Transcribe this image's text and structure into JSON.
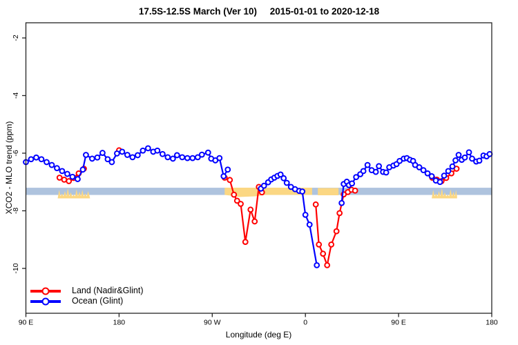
{
  "chart_data": {
    "type": "line",
    "title": "17.5S-12.5S March (Ver 10)     2015-01-01 to 2020-12-18",
    "xlabel": "Longitude (deg E)",
    "ylabel": "XCO2 - MLO trend (ppm)",
    "xlim_unwrapped_deg": [
      90,
      540
    ],
    "ylim": [
      -11.6,
      -1.7
    ],
    "grid": false,
    "x_ticks": [
      {
        "deg": 90,
        "label": "90 E"
      },
      {
        "deg": 180,
        "label": "180"
      },
      {
        "deg": 270,
        "label": "90 W"
      },
      {
        "deg": 360,
        "label": "0"
      },
      {
        "deg": 450,
        "label": "90 E"
      },
      {
        "deg": 540,
        "label": "180"
      }
    ],
    "y_ticks": [
      {
        "value": -2,
        "label": "-2"
      },
      {
        "value": -4,
        "label": "-4"
      },
      {
        "value": -6,
        "label": "-6"
      },
      {
        "value": -8,
        "label": "-8"
      },
      {
        "value": -10,
        "label": "-10"
      }
    ],
    "reference_band": {
      "value_from": -7.2,
      "value_to": -7.45,
      "color": "#aec3de"
    },
    "patch_color": "#fbd783",
    "highlight_patches": [
      {
        "deg_from": 120.7,
        "deg_to": 152.0,
        "style": "jagged"
      },
      {
        "deg_from": 282.0,
        "deg_to": 366.5,
        "style": "flat-sag"
      },
      {
        "deg_from": 372.0,
        "deg_to": 392.0,
        "style": "flat"
      },
      {
        "deg_from": 482.0,
        "deg_to": 506.5,
        "style": "jagged"
      }
    ],
    "legend": {
      "position": "bottom-left"
    },
    "series": [
      {
        "name": "Land (Nadir&Glint)",
        "color": "#ff0000",
        "segments": [
          [
            [
              122.5,
              -6.85
            ],
            [
              127,
              -6.92
            ],
            [
              131.5,
              -6.97
            ],
            [
              136,
              -6.86
            ],
            [
              141,
              -6.7
            ],
            [
              146,
              -6.54
            ]
          ],
          [
            [
              180,
              -5.9
            ]
          ],
          [
            [
              282,
              -6.85
            ],
            [
              287,
              -6.93
            ],
            [
              291,
              -7.44
            ],
            [
              294,
              -7.65
            ],
            [
              297.5,
              -7.76
            ],
            [
              302,
              -9.08
            ],
            [
              307,
              -7.96
            ],
            [
              311,
              -8.37
            ],
            [
              315,
              -7.17
            ],
            [
              318,
              -7.36
            ]
          ],
          [
            [
              370,
              -7.78
            ],
            [
              373,
              -9.17
            ],
            [
              377,
              -9.49
            ],
            [
              381,
              -9.89
            ],
            [
              385,
              -9.17
            ],
            [
              390,
              -8.71
            ],
            [
              393,
              -8.08
            ],
            [
              397,
              -7.43
            ],
            [
              401,
              -7.35
            ],
            [
              404.5,
              -7.27
            ],
            [
              408,
              -7.3
            ]
          ],
          [
            [
              482.5,
              -6.85
            ],
            [
              487,
              -6.92
            ],
            [
              491.5,
              -6.97
            ],
            [
              496,
              -6.86
            ],
            [
              501,
              -6.7
            ],
            [
              506,
              -6.54
            ]
          ]
        ]
      },
      {
        "name": "Ocean (Glint)",
        "color": "#0000ff",
        "segments": [
          [
            [
              90,
              -6.31
            ],
            [
              95,
              -6.21
            ],
            [
              100,
              -6.15
            ],
            [
              105,
              -6.21
            ],
            [
              110,
              -6.31
            ],
            [
              115,
              -6.41
            ],
            [
              120,
              -6.52
            ],
            [
              125,
              -6.62
            ],
            [
              130,
              -6.72
            ],
            [
              135,
              -6.82
            ],
            [
              140,
              -6.9
            ],
            [
              145,
              -6.57
            ],
            [
              148,
              -6.06
            ],
            [
              154,
              -6.19
            ],
            [
              159,
              -6.15
            ],
            [
              164,
              -5.99
            ],
            [
              169,
              -6.21
            ],
            [
              173,
              -6.31
            ],
            [
              178,
              -6.01
            ],
            [
              183,
              -5.95
            ],
            [
              188,
              -6.06
            ],
            [
              193,
              -6.14
            ],
            [
              198,
              -6.07
            ],
            [
              203,
              -5.91
            ],
            [
              208,
              -5.83
            ],
            [
              213,
              -5.95
            ],
            [
              217,
              -5.91
            ],
            [
              222,
              -6.03
            ],
            [
              227,
              -6.14
            ],
            [
              232,
              -6.19
            ],
            [
              236,
              -6.07
            ],
            [
              241,
              -6.14
            ],
            [
              246,
              -6.17
            ],
            [
              251,
              -6.17
            ],
            [
              256,
              -6.14
            ],
            [
              260,
              -6.05
            ],
            [
              266,
              -5.98
            ],
            [
              269,
              -6.19
            ],
            [
              273,
              -6.25
            ],
            [
              277,
              -6.17
            ],
            [
              281,
              -6.8
            ],
            [
              285,
              -6.57
            ]
          ],
          [
            [
              317,
              -7.23
            ],
            [
              320,
              -7.13
            ],
            [
              324,
              -7.01
            ],
            [
              327,
              -6.91
            ],
            [
              330,
              -6.85
            ],
            [
              333,
              -6.79
            ],
            [
              336,
              -6.74
            ],
            [
              339,
              -6.87
            ],
            [
              342,
              -7.03
            ],
            [
              346,
              -7.17
            ],
            [
              350,
              -7.25
            ],
            [
              354,
              -7.31
            ],
            [
              357,
              -7.33
            ],
            [
              360,
              -8.14
            ],
            [
              364,
              -8.48
            ],
            [
              371,
              -9.89
            ]
          ],
          [
            [
              395,
              -7.73
            ],
            [
              397,
              -7.07
            ],
            [
              400,
              -6.99
            ],
            [
              402,
              -7.11
            ],
            [
              405,
              -7.05
            ],
            [
              409,
              -6.83
            ],
            [
              413,
              -6.73
            ],
            [
              416,
              -6.62
            ],
            [
              420,
              -6.41
            ],
            [
              424,
              -6.59
            ],
            [
              428,
              -6.65
            ],
            [
              431,
              -6.45
            ],
            [
              435,
              -6.65
            ],
            [
              438,
              -6.67
            ],
            [
              441,
              -6.49
            ],
            [
              445,
              -6.43
            ],
            [
              448,
              -6.38
            ],
            [
              451,
              -6.27
            ],
            [
              455,
              -6.19
            ],
            [
              458,
              -6.17
            ],
            [
              461,
              -6.23
            ],
            [
              464,
              -6.27
            ],
            [
              466,
              -6.41
            ],
            [
              470,
              -6.49
            ],
            [
              474,
              -6.59
            ],
            [
              478,
              -6.7
            ],
            [
              482,
              -6.8
            ],
            [
              486,
              -6.95
            ],
            [
              490,
              -7.0
            ],
            [
              494,
              -6.78
            ],
            [
              498,
              -6.62
            ],
            [
              502,
              -6.46
            ],
            [
              505,
              -6.25
            ],
            [
              508,
              -6.06
            ],
            [
              511,
              -6.23
            ],
            [
              514,
              -6.15
            ],
            [
              518,
              -5.97
            ],
            [
              521,
              -6.19
            ],
            [
              525,
              -6.29
            ],
            [
              528,
              -6.26
            ],
            [
              532,
              -6.08
            ],
            [
              535,
              -6.11
            ],
            [
              538,
              -6.03
            ]
          ]
        ]
      }
    ]
  }
}
